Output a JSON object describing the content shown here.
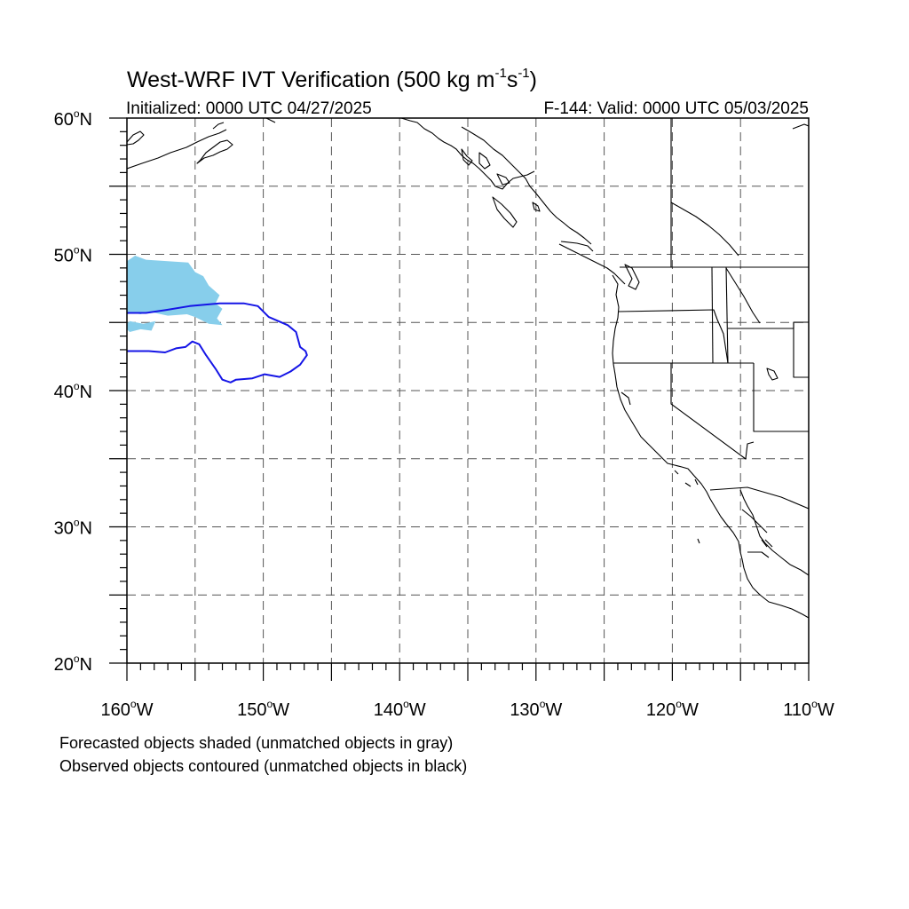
{
  "title": {
    "main": "West-WRF IVT Verification (500 kg m",
    "exp1": "-1",
    "mid": "s",
    "exp2": "-1",
    "close": ")"
  },
  "subtitle_left": "Initialized: 0000 UTC 04/27/2025",
  "subtitle_right": "F-144: Valid: 0000 UTC 05/03/2025",
  "map": {
    "projection": "cylindrical-equidistant",
    "lon_range": [
      -160,
      -110
    ],
    "lat_range": [
      20,
      60
    ],
    "grid": "dashed every 5 degrees",
    "lat_labels": [
      {
        "value": 60,
        "num": "60",
        "hemi": "N"
      },
      {
        "value": 50,
        "num": "50",
        "hemi": "N"
      },
      {
        "value": 40,
        "num": "40",
        "hemi": "N"
      },
      {
        "value": 30,
        "num": "30",
        "hemi": "N"
      },
      {
        "value": 20,
        "num": "20",
        "hemi": "N"
      }
    ],
    "lon_labels": [
      {
        "value": -160,
        "num": "160",
        "hemi": "W"
      },
      {
        "value": -150,
        "num": "150",
        "hemi": "W"
      },
      {
        "value": -140,
        "num": "140",
        "hemi": "W"
      },
      {
        "value": -130,
        "num": "130",
        "hemi": "W"
      },
      {
        "value": -120,
        "num": "120",
        "hemi": "W"
      },
      {
        "value": -110,
        "num": "110",
        "hemi": "W"
      }
    ],
    "forecast_object_color": "#87ceeb",
    "observed_contour_color": "#1515e6",
    "forecast_objects": [
      {
        "type": "shaded",
        "matched": true,
        "lonlat": [
          [
            -160,
            49.5
          ],
          [
            -159.4,
            49.9
          ],
          [
            -158.6,
            49.6
          ],
          [
            -157.0,
            49.5
          ],
          [
            -155.5,
            49.4
          ],
          [
            -155.0,
            48.7
          ],
          [
            -154.4,
            48.4
          ],
          [
            -154.0,
            47.7
          ],
          [
            -153.2,
            47.0
          ],
          [
            -153.5,
            46.4
          ],
          [
            -153.0,
            46.0
          ],
          [
            -153.4,
            45.3
          ],
          [
            -153.0,
            44.8
          ],
          [
            -154.0,
            44.9
          ],
          [
            -155.0,
            45.4
          ],
          [
            -155.6,
            45.6
          ],
          [
            -157.0,
            45.5
          ],
          [
            -158.4,
            45.8
          ],
          [
            -159.0,
            45.6
          ],
          [
            -159.6,
            45.7
          ],
          [
            -160,
            45.6
          ]
        ]
      },
      {
        "type": "shaded",
        "matched": true,
        "lonlat": [
          [
            -160,
            44.9
          ],
          [
            -159.8,
            45.1
          ],
          [
            -158.8,
            44.9
          ],
          [
            -157.9,
            45.1
          ],
          [
            -158.2,
            44.4
          ],
          [
            -159.0,
            44.5
          ],
          [
            -159.8,
            44.3
          ],
          [
            -160,
            44.5
          ]
        ]
      }
    ],
    "observed_objects": [
      {
        "type": "contour",
        "matched": true,
        "lonlat": [
          [
            -160,
            45.7
          ],
          [
            -158.6,
            45.7
          ],
          [
            -157.2,
            45.9
          ],
          [
            -155.4,
            46.2
          ],
          [
            -153.2,
            46.4
          ],
          [
            -151.4,
            46.4
          ],
          [
            -150.4,
            46.2
          ],
          [
            -149.6,
            45.4
          ],
          [
            -148.2,
            44.8
          ],
          [
            -147.6,
            44.3
          ],
          [
            -147.3,
            43.2
          ],
          [
            -146.9,
            42.9
          ],
          [
            -146.8,
            42.6
          ],
          [
            -147.3,
            41.9
          ],
          [
            -148.0,
            41.4
          ],
          [
            -148.8,
            41.0
          ],
          [
            -149.9,
            41.2
          ],
          [
            -150.8,
            40.9
          ],
          [
            -152.0,
            40.8
          ],
          [
            -152.4,
            40.6
          ],
          [
            -153.0,
            40.8
          ],
          [
            -153.5,
            41.6
          ],
          [
            -154.2,
            42.6
          ],
          [
            -154.7,
            43.4
          ],
          [
            -155.2,
            43.6
          ],
          [
            -155.7,
            43.2
          ],
          [
            -156.4,
            43.1
          ],
          [
            -157.2,
            42.8
          ],
          [
            -158.4,
            42.9
          ],
          [
            -160,
            42.9
          ]
        ]
      }
    ]
  },
  "footnotes": [
    "Forecasted objects shaded (unmatched objects in gray)",
    "Observed objects contoured (unmatched objects in black)"
  ]
}
